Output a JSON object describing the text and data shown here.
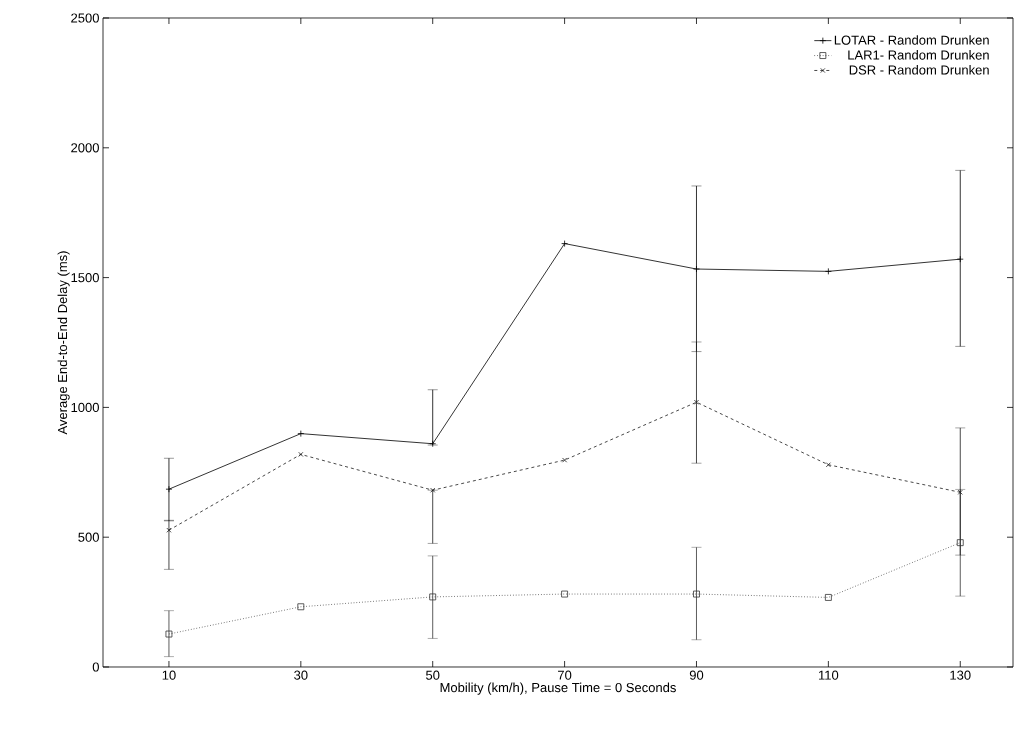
{
  "chart_data": {
    "type": "line",
    "xlabel": "Mobility (km/h), Pause Time = 0 Seconds",
    "ylabel": "Average End-to-End Delay (ms)",
    "x": [
      10,
      30,
      50,
      70,
      90,
      110,
      130
    ],
    "xlim": [
      0,
      138
    ],
    "xticks": [
      10,
      30,
      50,
      70,
      90,
      110,
      130
    ],
    "ylim": [
      0,
      2500
    ],
    "yticks": [
      0,
      500,
      1000,
      1500,
      2000,
      2500
    ],
    "grid": false,
    "legend": "top right",
    "series": [
      {
        "name": "LOTAR - Random Drunken",
        "color": "#000000",
        "marker": "plus",
        "line_style": "solid",
        "values": [
          685,
          899,
          860,
          1631,
          1533,
          1524,
          1571
        ],
        "errors": [
          [
            563,
            804
          ],
          null,
          [
            855,
            1068
          ],
          null,
          [
            1215,
            1853
          ],
          null,
          [
            1235,
            1913
          ]
        ]
      },
      {
        "name": "LAR1- Random Drunken",
        "color": "#333333",
        "marker": "square",
        "line_style": "dotted",
        "values": [
          127,
          232,
          270,
          281,
          281,
          268,
          479
        ],
        "errors": [
          [
            40,
            217
          ],
          null,
          [
            110,
            428
          ],
          null,
          [
            105,
            461
          ],
          null,
          [
            273,
            684
          ]
        ]
      },
      {
        "name": "DSR - Random Drunken",
        "color": "#1a1a1a",
        "marker": "cross",
        "line_style": "dashed",
        "values": [
          527,
          819,
          681,
          797,
          1020,
          779,
          673
        ],
        "errors": [
          [
            376,
            565
          ],
          null,
          [
            476,
            681
          ],
          null,
          [
            785,
            1252
          ],
          null,
          [
            431,
            921
          ]
        ]
      }
    ]
  }
}
